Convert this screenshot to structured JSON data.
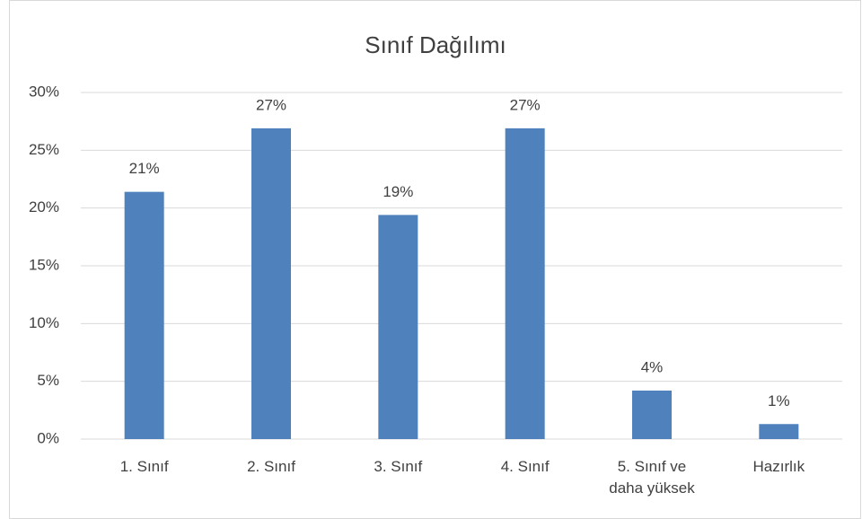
{
  "chart_data": {
    "type": "bar",
    "title": "Sınıf Dağılımı",
    "categories": [
      "1. Sınıf",
      "2. Sınıf",
      "3. Sınıf",
      "4. Sınıf",
      "5. Sınıf ve\ndaha yüksek",
      "Hazırlık"
    ],
    "values": [
      21.4,
      26.9,
      19.4,
      26.9,
      4.2,
      1.3
    ],
    "value_labels": [
      "21%",
      "27%",
      "19%",
      "27%",
      "4%",
      "1%"
    ],
    "color": "#4f81bd",
    "ylim": [
      0,
      30
    ],
    "yticks": [
      {
        "value": 0,
        "label": "0%"
      },
      {
        "value": 5,
        "label": "5%"
      },
      {
        "value": 10,
        "label": "10%"
      },
      {
        "value": 15,
        "label": "15%"
      },
      {
        "value": 20,
        "label": "20%"
      },
      {
        "value": 25,
        "label": "25%"
      },
      {
        "value": 30,
        "label": "30%"
      }
    ],
    "grid": true
  }
}
